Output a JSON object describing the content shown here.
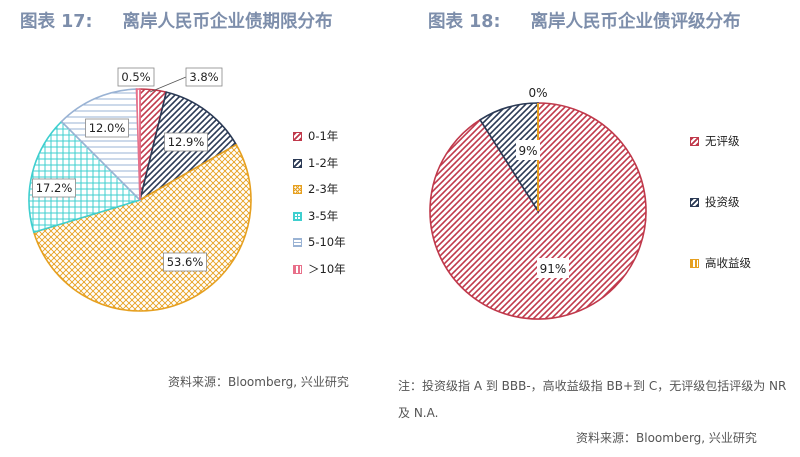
{
  "figures": {
    "left": {
      "number": "图表 17:",
      "title": "离岸人民币企业债期限分布",
      "source": "资料来源：Bloomberg, 兴业研究"
    },
    "right": {
      "number": "图表 18:",
      "title": "离岸人民币企业债评级分布",
      "note": "注：投资级指 A 到 BBB-，高收益级指 BB+到 C，无评级包括评级为 NR 及 N.A.",
      "source": "资料来源：Bloomberg, 兴业研究"
    }
  },
  "chart_data": [
    {
      "type": "pie",
      "title": "离岸人民币企业债期限分布",
      "labels": [
        "0-1年",
        "1-2年",
        "2-3年",
        "3-5年",
        "5-10年",
        "＞10年"
      ],
      "values": [
        3.8,
        12.9,
        53.6,
        17.2,
        12.0,
        0.5
      ],
      "data_labels": [
        "3.8%",
        "12.9%",
        "53.6%",
        "17.2%",
        "12.0%",
        "0.5%"
      ],
      "colors": [
        "#c0394b",
        "#2b3a55",
        "#e6a020",
        "#3fcfcf",
        "#9ab3d4",
        "#e8708a"
      ],
      "legend_position": "right"
    },
    {
      "type": "pie",
      "title": "离岸人民币企业债评级分布",
      "labels": [
        "无评级",
        "投资级",
        "高收益级"
      ],
      "values": [
        91,
        9,
        0
      ],
      "data_labels": [
        "91%",
        "9%",
        "0%"
      ],
      "colors": [
        "#c0394b",
        "#2b3a55",
        "#e6a020"
      ],
      "legend_position": "right"
    }
  ]
}
